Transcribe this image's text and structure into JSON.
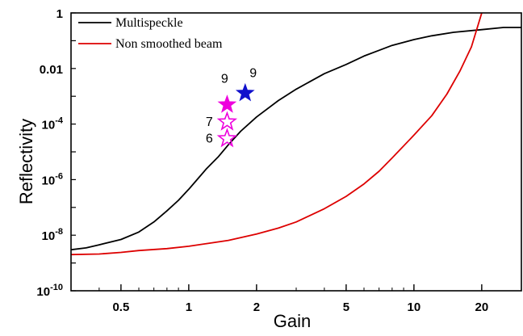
{
  "chart_data": {
    "type": "line",
    "xlabel": "Gain",
    "ylabel": "Reflectivity",
    "x_scale": "log",
    "y_scale": "log",
    "xlim": [
      0.3,
      30
    ],
    "ylim": [
      1e-10,
      1
    ],
    "x_ticks": [
      {
        "value": 0.5,
        "label": "0.5"
      },
      {
        "value": 1,
        "label": "1"
      },
      {
        "value": 2,
        "label": "2"
      },
      {
        "value": 5,
        "label": "5"
      },
      {
        "value": 10,
        "label": "10"
      },
      {
        "value": 20,
        "label": "20"
      }
    ],
    "y_ticks": [
      {
        "value": 1,
        "base": "1",
        "exp": ""
      },
      {
        "value": 0.01,
        "base": "0.01",
        "exp": ""
      },
      {
        "value": 0.0001,
        "base": "10",
        "exp": "-4"
      },
      {
        "value": 1e-06,
        "base": "10",
        "exp": "-6"
      },
      {
        "value": 1e-08,
        "base": "10",
        "exp": "-8"
      },
      {
        "value": 1e-10,
        "base": "10",
        "exp": "-10"
      }
    ],
    "grid": false,
    "legend_position": "top-left",
    "series": [
      {
        "name": "Multispeckle",
        "color": "#000000",
        "x": [
          0.3,
          0.35,
          0.4,
          0.5,
          0.6,
          0.7,
          0.8,
          0.9,
          1.0,
          1.1,
          1.2,
          1.35,
          1.5,
          1.7,
          2.0,
          2.5,
          3.0,
          4.0,
          5.0,
          6.0,
          7.0,
          8.0,
          10.0,
          12.0,
          15.0,
          20.0,
          25.0,
          30.0
        ],
        "y": [
          3e-09,
          3.5e-09,
          4.5e-09,
          7e-09,
          1.3e-08,
          3e-08,
          7.5e-08,
          1.8e-07,
          4.5e-07,
          1.1e-06,
          2.5e-06,
          6.5e-06,
          1.8e-05,
          5.5e-05,
          0.00018,
          0.0007,
          0.0018,
          0.0065,
          0.014,
          0.028,
          0.045,
          0.068,
          0.11,
          0.15,
          0.2,
          0.25,
          0.3,
          0.3
        ]
      },
      {
        "name": "Non smoothed beam",
        "color": "#dd0000",
        "x": [
          0.3,
          0.4,
          0.5,
          0.6,
          0.8,
          1.0,
          1.2,
          1.5,
          2.0,
          2.5,
          3.0,
          4.0,
          5.0,
          6.0,
          7.0,
          8.0,
          10.0,
          12.0,
          14.0,
          16.0,
          18.0,
          20.0
        ],
        "y": [
          2e-09,
          2.1e-09,
          2.4e-09,
          2.8e-09,
          3.3e-09,
          4e-09,
          5e-09,
          6.5e-09,
          1.1e-08,
          1.8e-08,
          3e-08,
          9e-08,
          2.5e-07,
          7e-07,
          2e-06,
          6e-06,
          4e-05,
          0.0002,
          0.0012,
          0.008,
          0.06,
          1.0
        ]
      }
    ],
    "markers": [
      {
        "x": 1.78,
        "y": 0.0013,
        "style": "filled",
        "color": "#1010cc",
        "label": "9"
      },
      {
        "x": 1.48,
        "y": 0.0005,
        "style": "filled",
        "color": "#ee00dd",
        "label": "9"
      },
      {
        "x": 1.48,
        "y": 0.00012,
        "style": "open",
        "color": "#ee00dd",
        "label": "7"
      },
      {
        "x": 1.48,
        "y": 3e-05,
        "style": "open",
        "color": "#ee00dd",
        "label": "6"
      }
    ]
  }
}
